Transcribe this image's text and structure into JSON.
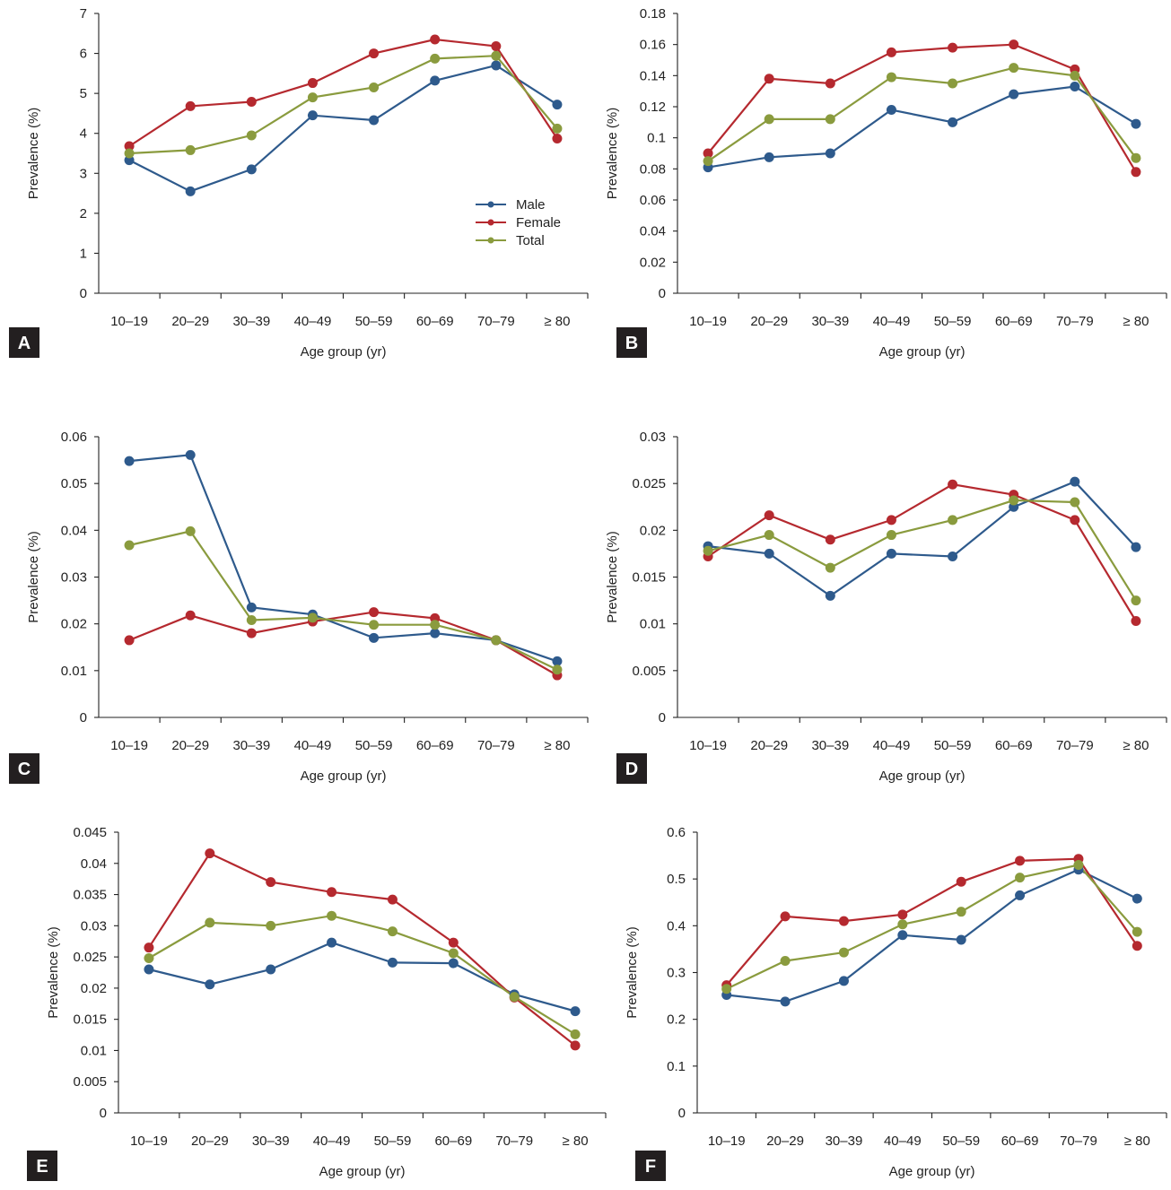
{
  "colors": {
    "male": "#2e5a8c",
    "female": "#b5292f",
    "total": "#8a9b3e"
  },
  "legend": {
    "male": "Male",
    "female": "Female",
    "total": "Total"
  },
  "chart_data": [
    {
      "panel": "A",
      "type": "line",
      "categories": [
        "10–19",
        "20–29",
        "30–39",
        "40–49",
        "50–59",
        "60–69",
        "70–79",
        "≥ 80"
      ],
      "xlabel": "Age group (yr)",
      "ylabel": "Prevalence (%)",
      "ylim": [
        0,
        7
      ],
      "yticks": [
        0,
        1,
        2,
        3,
        4,
        5,
        6,
        7
      ],
      "ytick_labels": [
        "0",
        "1",
        "2",
        "3",
        "4",
        "5",
        "6",
        "7"
      ],
      "show_legend": true,
      "legend_position": "center-right",
      "series": [
        {
          "name": "Male",
          "key": "male",
          "values": [
            3.33,
            2.55,
            3.1,
            4.45,
            4.33,
            5.32,
            5.7,
            4.72
          ]
        },
        {
          "name": "Female",
          "key": "female",
          "values": [
            3.68,
            4.68,
            4.79,
            5.26,
            6.0,
            6.35,
            6.18,
            3.87
          ]
        },
        {
          "name": "Total",
          "key": "total",
          "values": [
            3.5,
            3.58,
            3.95,
            4.9,
            5.15,
            5.87,
            5.94,
            4.12
          ]
        }
      ]
    },
    {
      "panel": "B",
      "type": "line",
      "categories": [
        "10–19",
        "20–29",
        "30–39",
        "40–49",
        "50–59",
        "60–69",
        "70–79",
        "≥ 80"
      ],
      "xlabel": "Age group (yr)",
      "ylabel": "Prevalence (%)",
      "ylim": [
        0,
        0.18
      ],
      "yticks": [
        0,
        0.02,
        0.04,
        0.06,
        0.08,
        0.1,
        0.12,
        0.14,
        0.16,
        0.18
      ],
      "ytick_labels": [
        "0",
        "0.02",
        "0.04",
        "0.06",
        "0.08",
        "0.1",
        "0.12",
        "0.14",
        "0.16",
        "0.18"
      ],
      "show_legend": false,
      "series": [
        {
          "name": "Male",
          "key": "male",
          "values": [
            0.081,
            0.0875,
            0.09,
            0.118,
            0.11,
            0.128,
            0.133,
            0.109
          ]
        },
        {
          "name": "Female",
          "key": "female",
          "values": [
            0.09,
            0.138,
            0.135,
            0.155,
            0.158,
            0.16,
            0.144,
            0.078
          ]
        },
        {
          "name": "Total",
          "key": "total",
          "values": [
            0.085,
            0.112,
            0.112,
            0.139,
            0.135,
            0.145,
            0.14,
            0.087
          ]
        }
      ]
    },
    {
      "panel": "C",
      "type": "line",
      "categories": [
        "10–19",
        "20–29",
        "30–39",
        "40–49",
        "50–59",
        "60–69",
        "70–79",
        "≥ 80"
      ],
      "xlabel": "Age group (yr)",
      "ylabel": "Prevalence (%)",
      "ylim": [
        0,
        0.06
      ],
      "yticks": [
        0,
        0.01,
        0.02,
        0.03,
        0.04,
        0.05,
        0.06
      ],
      "ytick_labels": [
        "0",
        "0.01",
        "0.02",
        "0.03",
        "0.04",
        "0.05",
        "0.06"
      ],
      "show_legend": false,
      "series": [
        {
          "name": "Male",
          "key": "male",
          "values": [
            0.0548,
            0.0561,
            0.0235,
            0.022,
            0.017,
            0.018,
            0.0165,
            0.012
          ]
        },
        {
          "name": "Female",
          "key": "female",
          "values": [
            0.0165,
            0.0218,
            0.018,
            0.0205,
            0.0225,
            0.0212,
            0.0165,
            0.009
          ]
        },
        {
          "name": "Total",
          "key": "total",
          "values": [
            0.0368,
            0.0398,
            0.0208,
            0.0213,
            0.0198,
            0.0198,
            0.0165,
            0.0102
          ]
        }
      ]
    },
    {
      "panel": "D",
      "type": "line",
      "categories": [
        "10–19",
        "20–29",
        "30–39",
        "40–49",
        "50–59",
        "60–69",
        "70–79",
        "≥ 80"
      ],
      "xlabel": "Age group (yr)",
      "ylabel": "Prevalence (%)",
      "ylim": [
        0,
        0.03
      ],
      "yticks": [
        0,
        0.005,
        0.01,
        0.015,
        0.02,
        0.025,
        0.03
      ],
      "ytick_labels": [
        "0",
        "0.005",
        "0.01",
        "0.015",
        "0.02",
        "0.025",
        "0.03"
      ],
      "show_legend": false,
      "series": [
        {
          "name": "Male",
          "key": "male",
          "values": [
            0.0183,
            0.0175,
            0.013,
            0.0175,
            0.0172,
            0.0225,
            0.0252,
            0.0182
          ]
        },
        {
          "name": "Female",
          "key": "female",
          "values": [
            0.0172,
            0.0216,
            0.019,
            0.0211,
            0.0249,
            0.0238,
            0.0211,
            0.0103
          ]
        },
        {
          "name": "Total",
          "key": "total",
          "values": [
            0.0178,
            0.0195,
            0.016,
            0.0195,
            0.0211,
            0.0232,
            0.023,
            0.0125
          ]
        }
      ]
    },
    {
      "panel": "E",
      "type": "line",
      "categories": [
        "10–19",
        "20–29",
        "30–39",
        "40–49",
        "50–59",
        "60–69",
        "70–79",
        "≥ 80"
      ],
      "xlabel": "Age group (yr)",
      "ylabel": "Prevalence (%)",
      "ylim": [
        0,
        0.045
      ],
      "yticks": [
        0,
        0.005,
        0.01,
        0.015,
        0.02,
        0.025,
        0.03,
        0.035,
        0.04,
        0.045
      ],
      "ytick_labels": [
        "0",
        "0.005",
        "0.01",
        "0.015",
        "0.02",
        "0.025",
        "0.03",
        "0.035",
        "0.04",
        "0.045"
      ],
      "show_legend": false,
      "series": [
        {
          "name": "Male",
          "key": "male",
          "values": [
            0.023,
            0.0206,
            0.023,
            0.0273,
            0.0241,
            0.024,
            0.019,
            0.0163
          ]
        },
        {
          "name": "Female",
          "key": "female",
          "values": [
            0.0265,
            0.0416,
            0.037,
            0.0354,
            0.0342,
            0.0273,
            0.0185,
            0.0108
          ]
        },
        {
          "name": "Total",
          "key": "total",
          "values": [
            0.0248,
            0.0305,
            0.03,
            0.0316,
            0.0291,
            0.0256,
            0.0186,
            0.0126
          ]
        }
      ]
    },
    {
      "panel": "F",
      "type": "line",
      "categories": [
        "10–19",
        "20–29",
        "30–39",
        "40–49",
        "50–59",
        "60–69",
        "70–79",
        "≥ 80"
      ],
      "xlabel": "Age group (yr)",
      "ylabel": "Prevalence (%)",
      "ylim": [
        0,
        0.6
      ],
      "yticks": [
        0,
        0.1,
        0.2,
        0.3,
        0.4,
        0.5,
        0.6
      ],
      "ytick_labels": [
        "0",
        "0.1",
        "0.2",
        "0.3",
        "0.4",
        "0.5",
        "0.6"
      ],
      "show_legend": false,
      "series": [
        {
          "name": "Male",
          "key": "male",
          "values": [
            0.252,
            0.238,
            0.282,
            0.38,
            0.37,
            0.465,
            0.52,
            0.458
          ]
        },
        {
          "name": "Female",
          "key": "female",
          "values": [
            0.273,
            0.42,
            0.41,
            0.424,
            0.494,
            0.539,
            0.543,
            0.357
          ]
        },
        {
          "name": "Total",
          "key": "total",
          "values": [
            0.265,
            0.325,
            0.343,
            0.403,
            0.43,
            0.503,
            0.53,
            0.387
          ]
        }
      ]
    }
  ]
}
